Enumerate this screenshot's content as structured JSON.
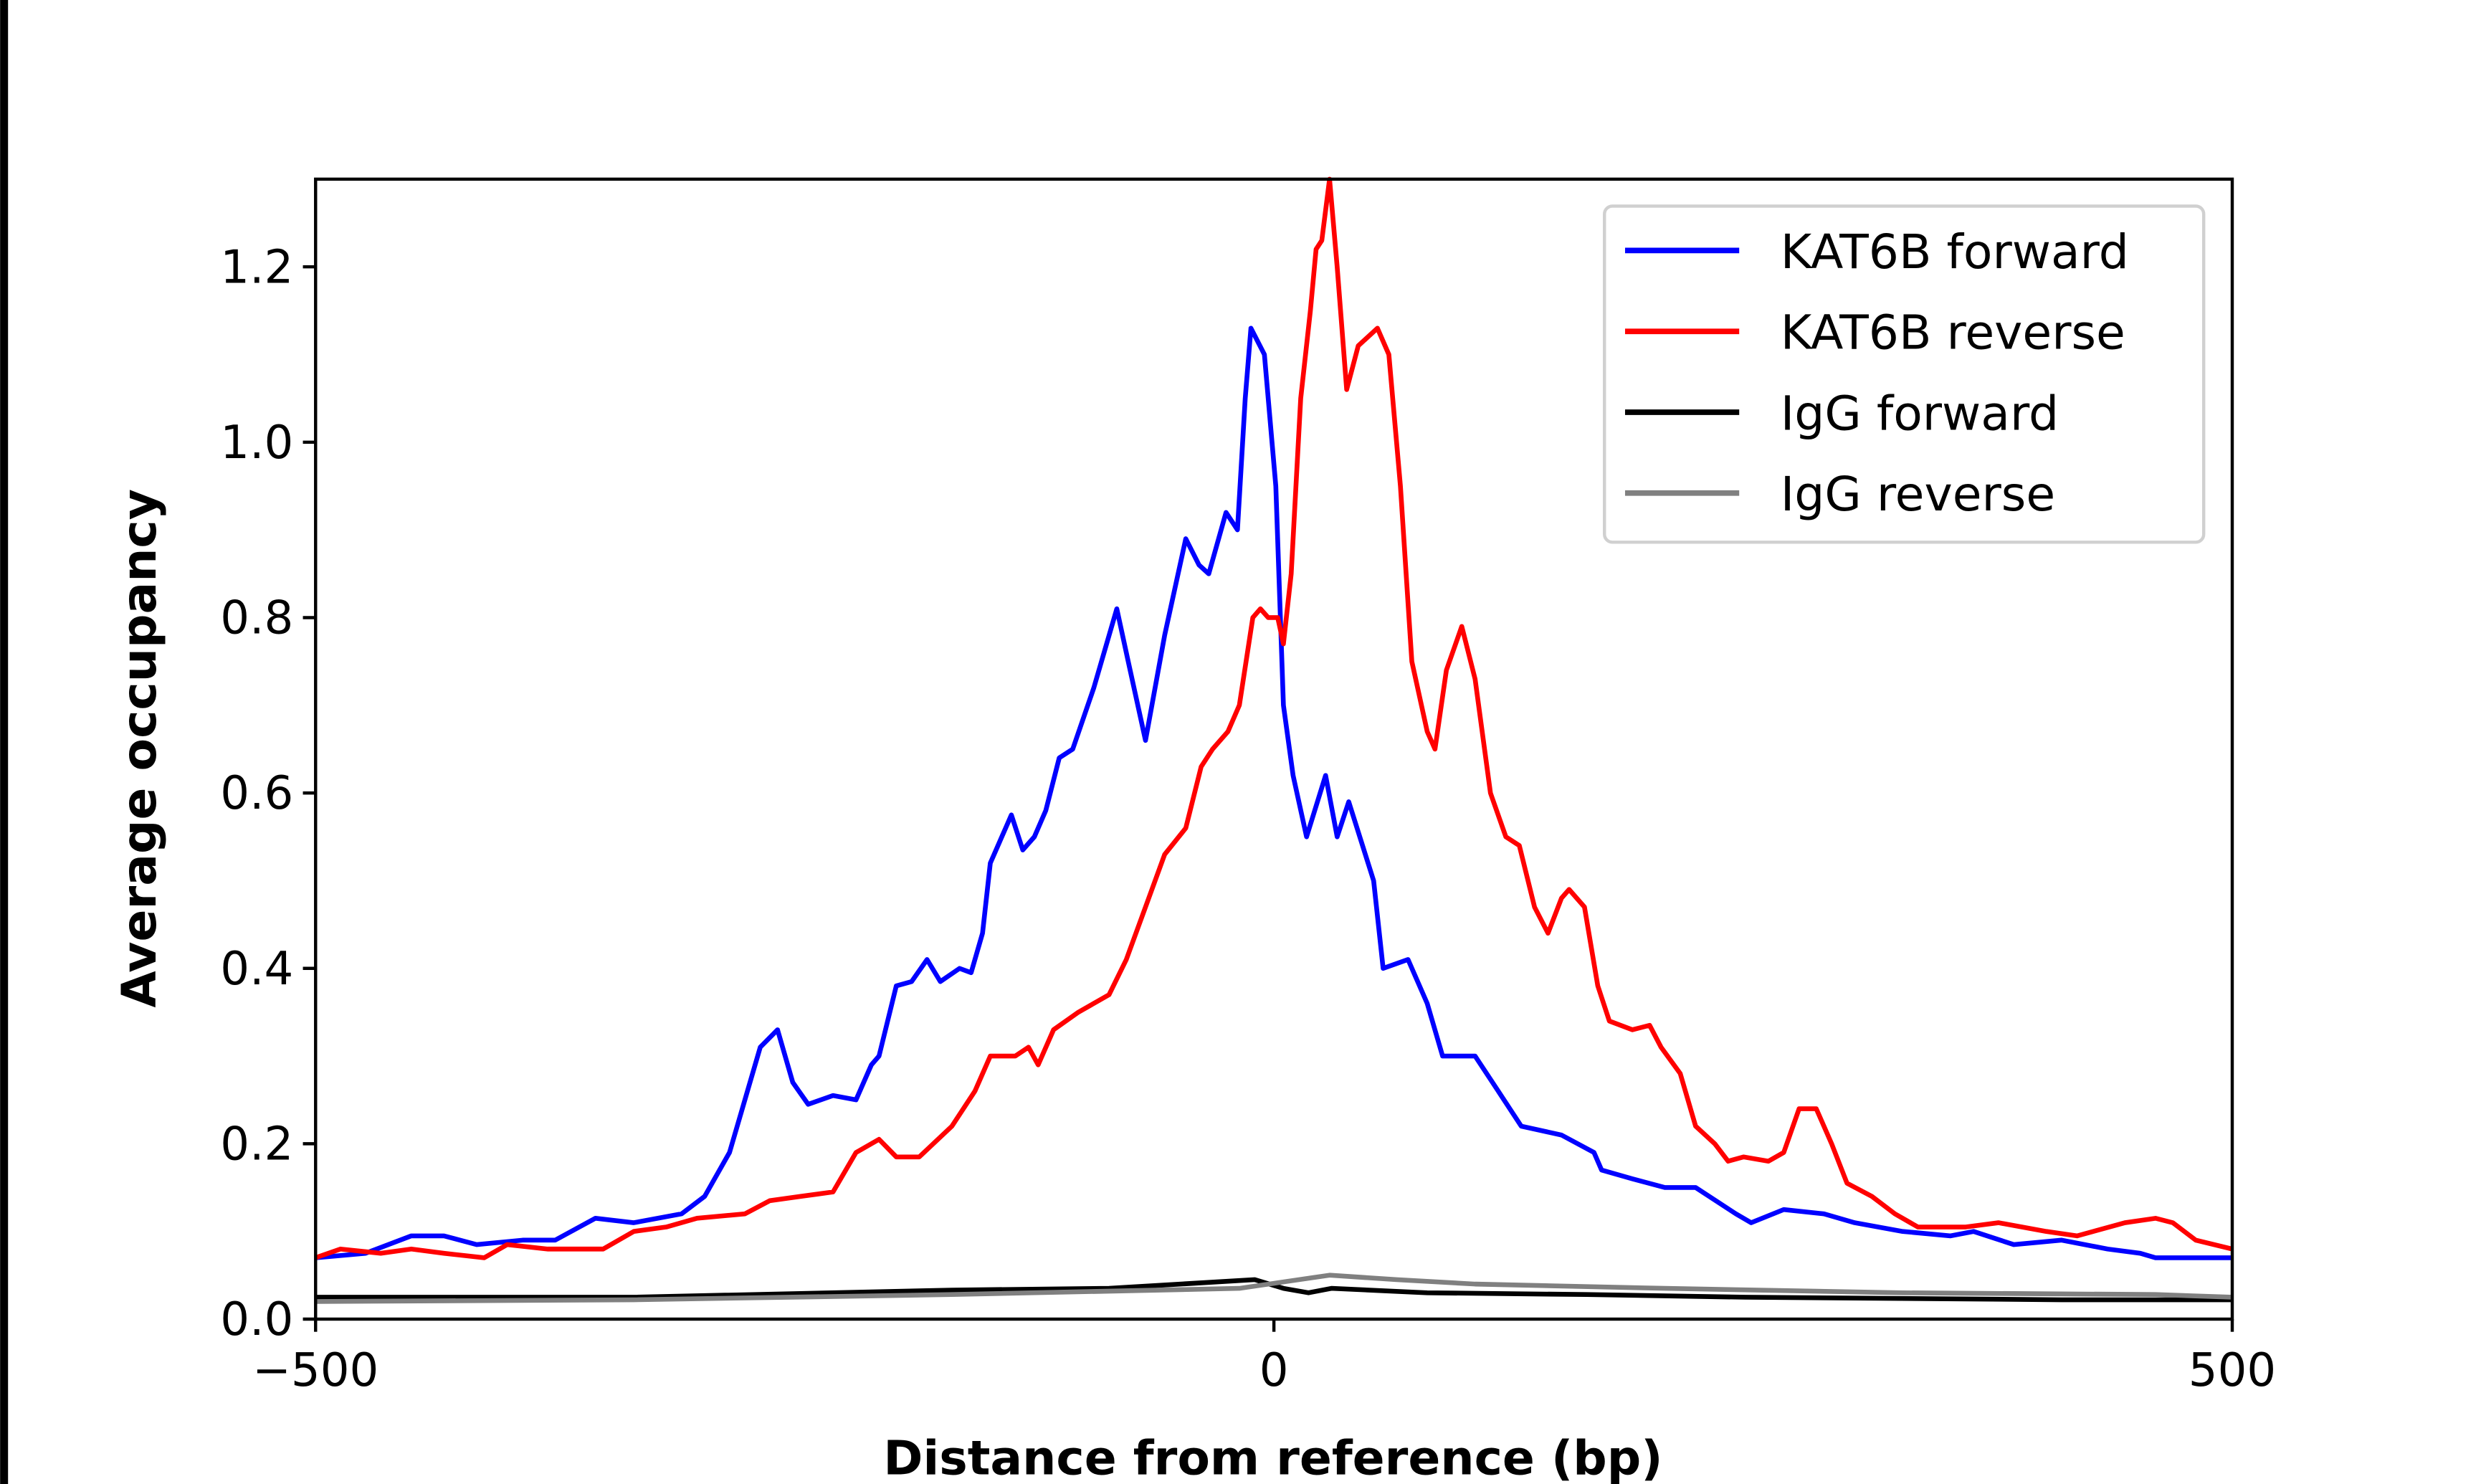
{
  "chart_data": {
    "type": "line",
    "title": "",
    "xlabel": "Distance from reference (bp)",
    "ylabel": "Average occupancy",
    "xlim": [
      -500,
      500
    ],
    "ylim": [
      0,
      1.3
    ],
    "xticks": [
      -500,
      0,
      500
    ],
    "xtick_labels": [
      "−500",
      "0",
      "500"
    ],
    "yticks": [
      0.0,
      0.2,
      0.4,
      0.6,
      0.8,
      1.0,
      1.2
    ],
    "ytick_labels": [
      "0.0",
      "0.2",
      "0.4",
      "0.6",
      "0.8",
      "1.0",
      "1.2"
    ],
    "grid": false,
    "legend_placement": "top-right",
    "series": [
      {
        "name": "KAT6B forward",
        "color": "#0000ff",
        "x": [
          -500,
          -474,
          -450,
          -433,
          -416,
          -392,
          -375,
          -354,
          -334,
          -309,
          -297,
          -284,
          -276,
          -268,
          -259,
          -251,
          -243,
          -230,
          -218,
          -210,
          -206,
          -197,
          -189,
          -181,
          -174,
          -164,
          -158,
          -152,
          -148,
          -137,
          -131,
          -125,
          -119,
          -112,
          -105,
          -94,
          -82,
          -76,
          -67,
          -57,
          -46,
          -39,
          -34,
          -25,
          -19,
          -15,
          -12,
          -5,
          1,
          5,
          10,
          17,
          27,
          33,
          39,
          52,
          57,
          70,
          80,
          88,
          105,
          117,
          129,
          150,
          167,
          171,
          187,
          204,
          220,
          241,
          249,
          266,
          287,
          303,
          328,
          353,
          365,
          386,
          411,
          435,
          452,
          460,
          500
        ],
        "y": [
          0.07,
          0.075,
          0.095,
          0.095,
          0.085,
          0.09,
          0.09,
          0.115,
          0.11,
          0.12,
          0.14,
          0.19,
          0.25,
          0.31,
          0.33,
          0.27,
          0.245,
          0.255,
          0.25,
          0.29,
          0.3,
          0.38,
          0.385,
          0.41,
          0.385,
          0.4,
          0.395,
          0.44,
          0.52,
          0.575,
          0.535,
          0.55,
          0.58,
          0.64,
          0.65,
          0.72,
          0.81,
          0.75,
          0.66,
          0.78,
          0.89,
          0.86,
          0.85,
          0.92,
          0.9,
          1.05,
          1.13,
          1.1,
          0.95,
          0.7,
          0.62,
          0.55,
          0.62,
          0.55,
          0.59,
          0.5,
          0.4,
          0.41,
          0.36,
          0.3,
          0.3,
          0.26,
          0.22,
          0.21,
          0.19,
          0.17,
          0.16,
          0.15,
          0.15,
          0.12,
          0.11,
          0.125,
          0.12,
          0.11,
          0.1,
          0.095,
          0.1,
          0.085,
          0.09,
          0.08,
          0.075,
          0.07,
          0.07
        ]
      },
      {
        "name": "KAT6B reverse",
        "color": "#ff0000",
        "x": [
          -500,
          -487,
          -466,
          -450,
          -433,
          -412,
          -400,
          -379,
          -350,
          -334,
          -317,
          -301,
          -276,
          -263,
          -247,
          -230,
          -218,
          -206,
          -197,
          -185,
          -168,
          -156,
          -148,
          -135,
          -128,
          -123,
          -115,
          -102,
          -86,
          -77,
          -67,
          -57,
          -46,
          -38,
          -32,
          -24,
          -18,
          -11,
          -7,
          -3,
          2,
          5,
          9,
          14,
          19,
          22,
          25,
          29,
          33,
          38,
          44,
          49,
          54,
          60,
          66,
          72,
          80,
          84,
          90,
          98,
          105,
          113,
          121,
          128,
          136,
          143,
          150,
          154,
          162,
          169,
          175,
          187,
          196,
          202,
          212,
          220,
          230,
          237,
          245,
          258,
          266,
          274,
          283,
          291,
          299,
          312,
          324,
          336,
          361,
          378,
          403,
          419,
          444,
          460,
          469,
          481,
          500
        ],
        "y": [
          0.07,
          0.08,
          0.075,
          0.08,
          0.075,
          0.07,
          0.085,
          0.08,
          0.08,
          0.1,
          0.105,
          0.115,
          0.12,
          0.135,
          0.14,
          0.145,
          0.19,
          0.205,
          0.185,
          0.185,
          0.22,
          0.26,
          0.3,
          0.3,
          0.31,
          0.29,
          0.33,
          0.35,
          0.37,
          0.41,
          0.47,
          0.53,
          0.56,
          0.63,
          0.65,
          0.67,
          0.7,
          0.8,
          0.81,
          0.8,
          0.8,
          0.77,
          0.85,
          1.05,
          1.15,
          1.22,
          1.23,
          1.3,
          1.2,
          1.06,
          1.11,
          1.12,
          1.13,
          1.1,
          0.95,
          0.75,
          0.67,
          0.65,
          0.74,
          0.79,
          0.73,
          0.6,
          0.55,
          0.54,
          0.47,
          0.44,
          0.48,
          0.49,
          0.47,
          0.38,
          0.34,
          0.33,
          0.335,
          0.31,
          0.28,
          0.22,
          0.2,
          0.18,
          0.185,
          0.18,
          0.19,
          0.24,
          0.24,
          0.2,
          0.155,
          0.14,
          0.12,
          0.105,
          0.105,
          0.11,
          0.1,
          0.095,
          0.11,
          0.115,
          0.11,
          0.09,
          0.08
        ]
      },
      {
        "name": "IgG forward",
        "color": "#000000",
        "x": [
          -500,
          -400,
          -334,
          -168,
          -86,
          -10,
          5,
          18,
          30,
          80,
          163,
          246,
          411,
          500
        ],
        "y": [
          0.025,
          0.025,
          0.025,
          0.033,
          0.035,
          0.045,
          0.035,
          0.03,
          0.035,
          0.03,
          0.028,
          0.025,
          0.022,
          0.022
        ]
      },
      {
        "name": "IgG reverse",
        "color": "#808080",
        "x": [
          -500,
          -334,
          -168,
          -18,
          29,
          64,
          105,
          204,
          328,
          460,
          500
        ],
        "y": [
          0.02,
          0.022,
          0.028,
          0.035,
          0.05,
          0.045,
          0.04,
          0.035,
          0.03,
          0.028,
          0.025
        ]
      }
    ]
  }
}
